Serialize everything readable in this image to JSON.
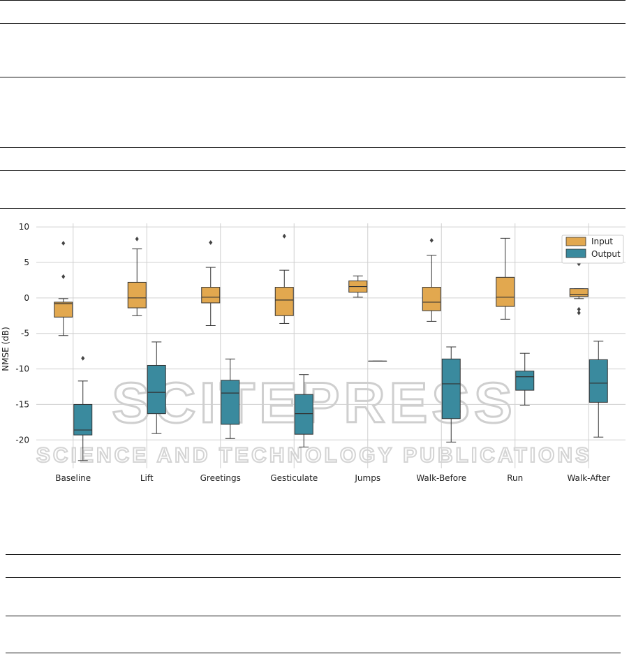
{
  "watermark": {
    "line1": "SCITEPRESS",
    "line2": "SCIENCE AND TECHNOLOGY PUBLICATIONS"
  },
  "colors": {
    "input": "#e2a84f",
    "output": "#3a8a9e",
    "grid": "#d0d0d0",
    "line": "#333333"
  },
  "chart_data": {
    "type": "box",
    "ylabel": "NMSE (dB)",
    "xlabel": "",
    "ylim": [
      -24,
      10.5
    ],
    "yticks": [
      10,
      5,
      0,
      -5,
      -10,
      -15,
      -20
    ],
    "grid": true,
    "legend_position": "top-right",
    "categories": [
      "Baseline",
      "Lift",
      "Greetings",
      "Gesticulate",
      "Jumps",
      "Walk-Before",
      "Run",
      "Walk-After"
    ],
    "series": [
      {
        "name": "Input",
        "color": "#e2a84f",
        "boxes": [
          {
            "low": -5.3,
            "q1": -2.7,
            "median": -0.8,
            "q3": -0.6,
            "high": -0.1,
            "outliers": [
              7.7,
              3.0
            ]
          },
          {
            "low": -2.5,
            "q1": -1.4,
            "median": 0.0,
            "q3": 2.2,
            "high": 6.9,
            "outliers": [
              8.3
            ]
          },
          {
            "low": -3.9,
            "q1": -0.7,
            "median": 0.1,
            "q3": 1.5,
            "high": 4.3,
            "outliers": [
              7.8
            ]
          },
          {
            "low": -3.6,
            "q1": -2.5,
            "median": -0.3,
            "q3": 1.5,
            "high": 3.9,
            "outliers": [
              8.7
            ]
          },
          {
            "low": 0.1,
            "q1": 0.8,
            "median": 1.6,
            "q3": 2.4,
            "high": 3.1,
            "outliers": []
          },
          {
            "low": -3.3,
            "q1": -1.8,
            "median": -0.6,
            "q3": 1.5,
            "high": 6.0,
            "outliers": [
              8.1
            ]
          },
          {
            "low": -3.0,
            "q1": -1.2,
            "median": 0.1,
            "q3": 2.9,
            "high": 8.4,
            "outliers": []
          },
          {
            "low": -0.1,
            "q1": 0.2,
            "median": 0.5,
            "q3": 1.3,
            "high": 1.3,
            "outliers": [
              4.8,
              -1.6,
              -2.1
            ]
          }
        ]
      },
      {
        "name": "Output",
        "color": "#3a8a9e",
        "boxes": [
          {
            "low": -22.9,
            "q1": -19.3,
            "median": -18.6,
            "q3": -15.0,
            "high": -11.7,
            "outliers": [
              -8.5
            ]
          },
          {
            "low": -19.1,
            "q1": -16.3,
            "median": -13.3,
            "q3": -9.5,
            "high": -6.2,
            "outliers": []
          },
          {
            "low": -19.8,
            "q1": -17.8,
            "median": -13.4,
            "q3": -11.6,
            "high": -8.6,
            "outliers": []
          },
          {
            "low": -21.0,
            "q1": -19.2,
            "median": -16.3,
            "q3": -13.6,
            "high": -10.8,
            "outliers": []
          },
          {
            "low": -8.9,
            "q1": -8.9,
            "median": -8.9,
            "q3": -8.9,
            "high": -8.9,
            "outliers": []
          },
          {
            "low": -20.3,
            "q1": -17.0,
            "median": -12.1,
            "q3": -8.6,
            "high": -6.9,
            "outliers": []
          },
          {
            "low": -15.1,
            "q1": -13.0,
            "median": -11.1,
            "q3": -10.3,
            "high": -7.8,
            "outliers": []
          },
          {
            "low": -19.6,
            "q1": -14.7,
            "median": -12.0,
            "q3": -8.7,
            "high": -6.1,
            "outliers": []
          }
        ]
      }
    ]
  }
}
